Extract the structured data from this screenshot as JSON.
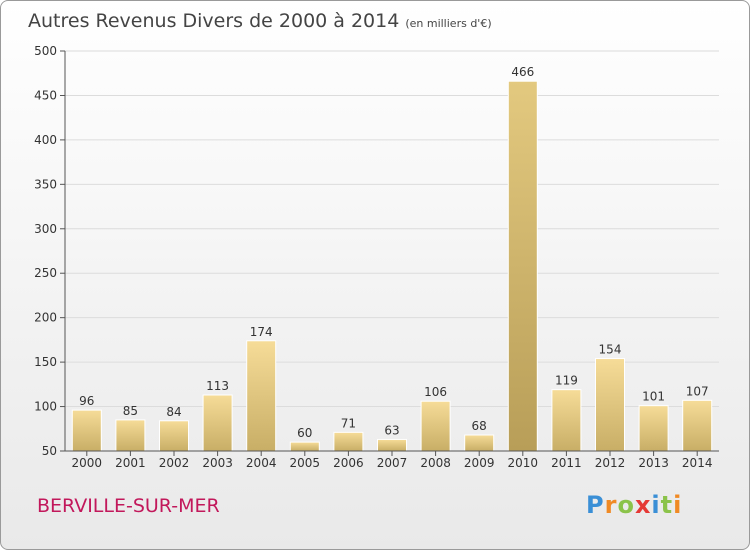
{
  "title": "Autres Revenus Divers de 2000 à 2014",
  "unit_note": "(en milliers d'€)",
  "commune": "BERVILLE-SUR-MER",
  "logo": "Proxiti",
  "chart_data": {
    "type": "bar",
    "title": "Autres Revenus Divers de 2000 à 2014",
    "subtitle": "(en milliers d'€)",
    "categories": [
      "2000",
      "2001",
      "2002",
      "2003",
      "2004",
      "2005",
      "2006",
      "2007",
      "2008",
      "2009",
      "2010",
      "2011",
      "2012",
      "2013",
      "2014"
    ],
    "values": [
      96,
      85,
      84,
      113,
      174,
      60,
      71,
      63,
      106,
      68,
      466,
      119,
      154,
      101,
      107
    ],
    "ylim": [
      50,
      500
    ],
    "yticks": [
      50,
      100,
      150,
      200,
      250,
      300,
      350,
      400,
      450,
      500
    ],
    "grid": true,
    "highlight_index": 10,
    "colors": {
      "bar": "#f0d48a",
      "highlight": "#d9c07a",
      "title": "#444444",
      "commune": "#c2185b"
    }
  }
}
